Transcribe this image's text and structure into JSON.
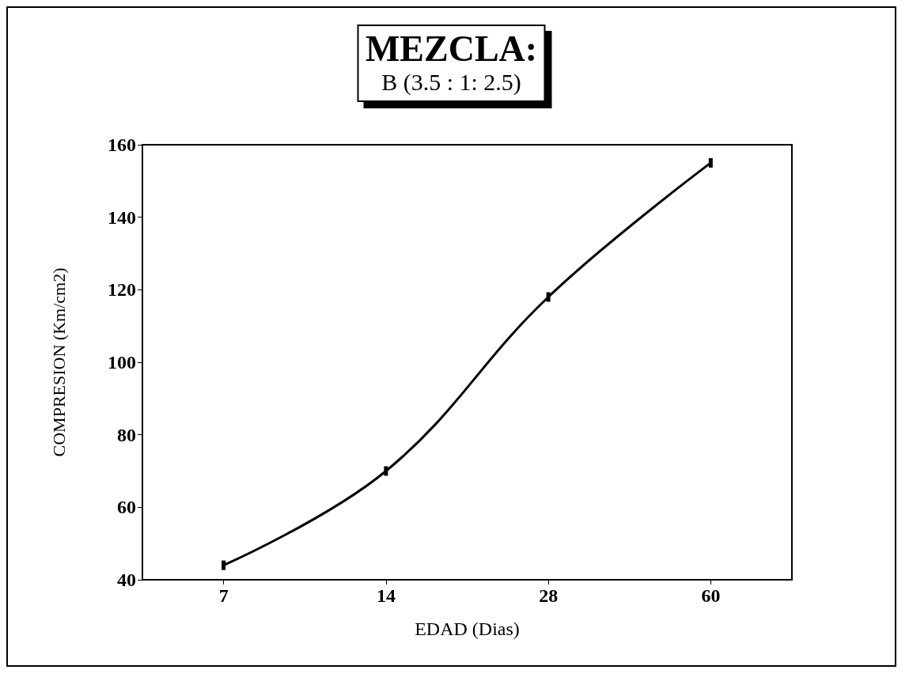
{
  "chart_data": {
    "type": "line",
    "title": "MEZCLA:",
    "subtitle": "B (3.5 : 1: 2.5)",
    "xlabel": "EDAD (Dias)",
    "ylabel": "COMPRESION (Km/cm2)",
    "categories": [
      "7",
      "14",
      "28",
      "60"
    ],
    "series": [
      {
        "color": "#000000",
        "values": [
          44,
          70,
          118,
          155
        ]
      }
    ],
    "ylim": [
      40,
      160
    ],
    "yticks": [
      40,
      60,
      80,
      100,
      120,
      140,
      160
    ],
    "grid": false,
    "marker": "square",
    "line_style": "solid"
  }
}
